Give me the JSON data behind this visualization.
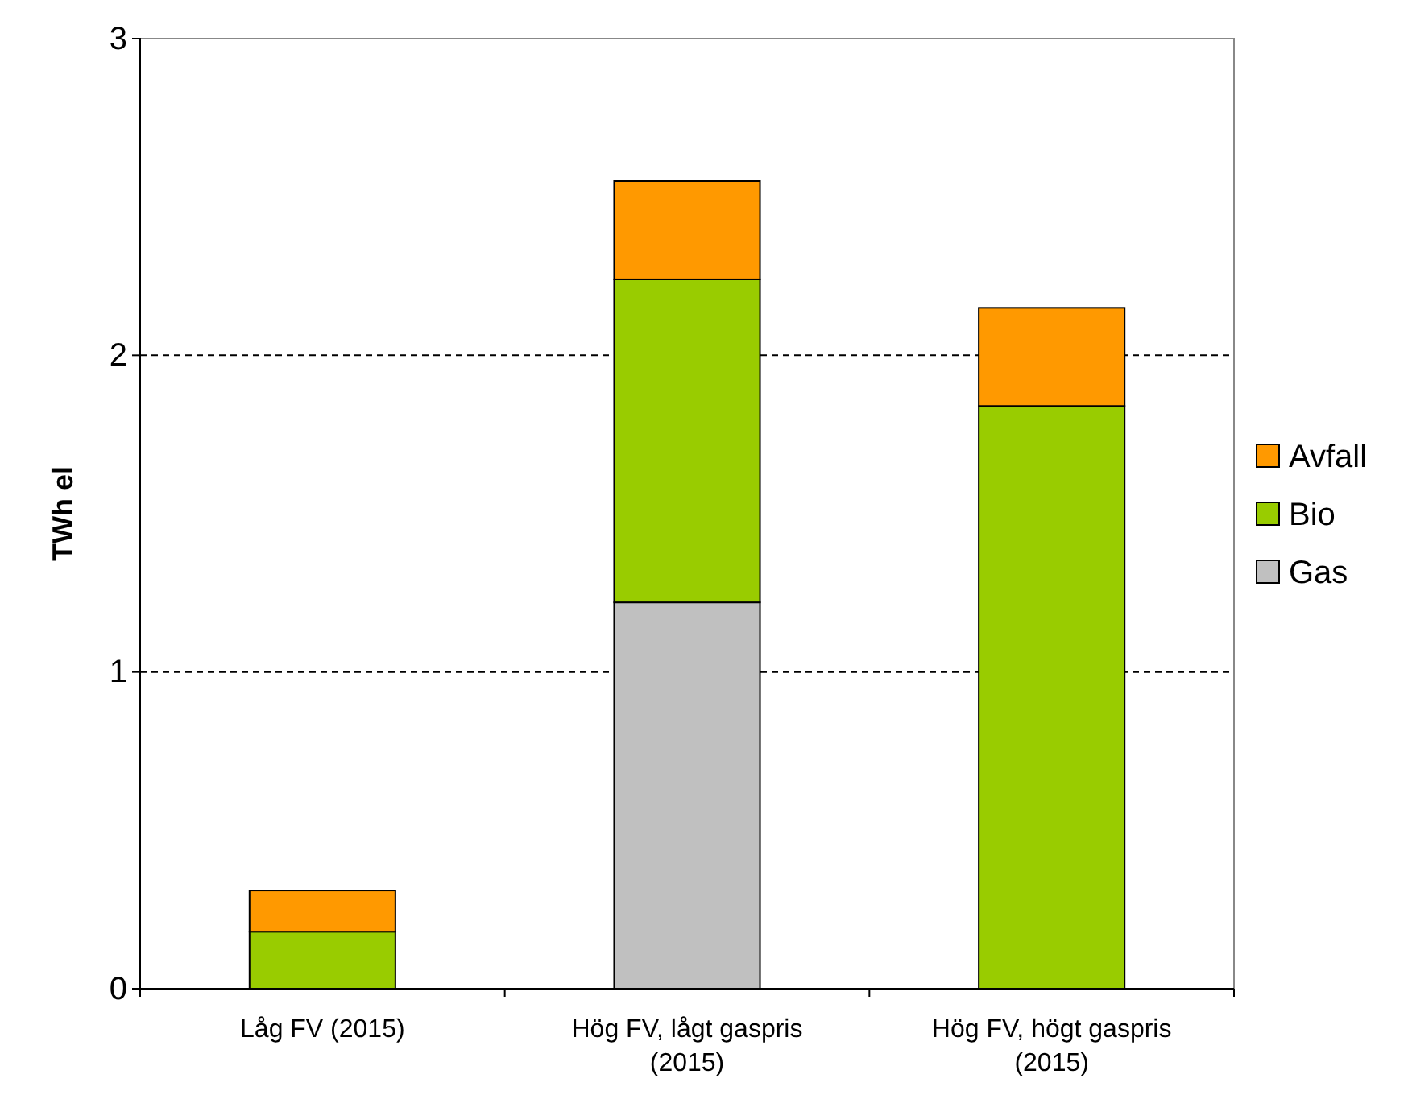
{
  "chart_data": {
    "type": "bar",
    "stacked": true,
    "ylabel": "TWh el",
    "categories": [
      "Låg FV (2015)",
      "Hög FV, lågt gaspris (2015)",
      "Hög FV, högt gaspris (2015)"
    ],
    "series": [
      {
        "name": "Gas",
        "color": "#c0c0c0",
        "values": [
          0,
          1.22,
          0
        ]
      },
      {
        "name": "Bio",
        "color": "#99cc00",
        "values": [
          0.18,
          1.02,
          1.84
        ]
      },
      {
        "name": "Avfall",
        "color": "#ff9900",
        "values": [
          0.13,
          0.31,
          0.31
        ]
      }
    ],
    "ylim": [
      0,
      3
    ],
    "yticks": [
      0,
      1,
      2,
      3
    ],
    "grid": "y",
    "legend": "right"
  }
}
